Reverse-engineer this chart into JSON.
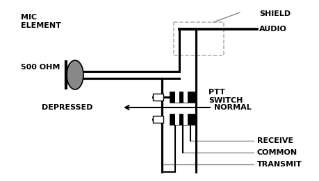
{
  "bg_color": "#ffffff",
  "line_color": "#000000",
  "gray_line_color": "#888888",
  "text_color": "#000000",
  "fig_width": 4.6,
  "fig_height": 2.61,
  "dpi": 100,
  "labels": {
    "mic_element": "MIC\nELEMENT",
    "ohm": "500 OHM",
    "shield": "SHIELD",
    "audio": "AUDIO",
    "ptt_switch": "PTT\nSWITCH",
    "depressed": "DEPRESSED",
    "normal": "NORMAL",
    "receive": "RECEIVE",
    "common": "COMMON",
    "transmit": "TRANSMIT"
  }
}
